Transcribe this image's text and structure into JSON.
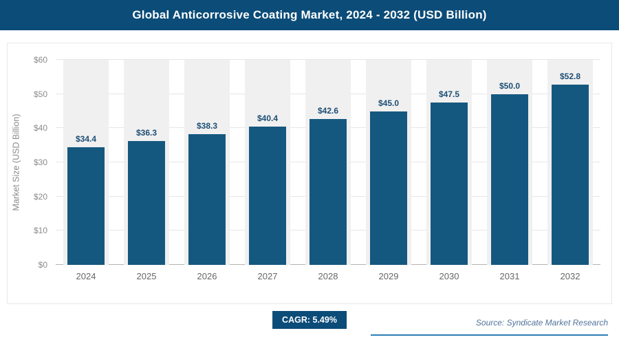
{
  "header": {
    "title": "Global Anticorrosive Coating Market, 2024 - 2032 (USD Billion)"
  },
  "chart_data": {
    "type": "bar",
    "title": "Global Anticorrosive Coating Market, 2024 - 2032 (USD Billion)",
    "categories": [
      "2024",
      "2025",
      "2026",
      "2027",
      "2028",
      "2029",
      "2030",
      "2031",
      "2032"
    ],
    "values": [
      34.4,
      36.3,
      38.3,
      40.4,
      42.6,
      45.0,
      47.5,
      50.0,
      52.8
    ],
    "value_labels": [
      "$34.4",
      "$36.3",
      "$38.3",
      "$40.4",
      "$42.6",
      "$45.0",
      "$47.5",
      "$50.0",
      "$52.8"
    ],
    "xlabel": "",
    "ylabel": "Market Size (USD Billion)",
    "ylim": [
      0,
      60
    ],
    "ytick_step": 10,
    "ytick_prefix": "$",
    "ytick_labels": [
      "$0",
      "$10",
      "$20",
      "$30",
      "$40",
      "$50",
      "$60"
    ],
    "grid": "horizontal",
    "legend": "none"
  },
  "footer": {
    "cagr_label": "CAGR: 5.49%",
    "source": "Source: Syndicate Market Research"
  },
  "colors": {
    "header_bg": "#0b4c78",
    "bar": "#15587f",
    "band": "#f0f0f0",
    "value_label": "#1c4e74",
    "accent_line": "#2e7fb8"
  }
}
